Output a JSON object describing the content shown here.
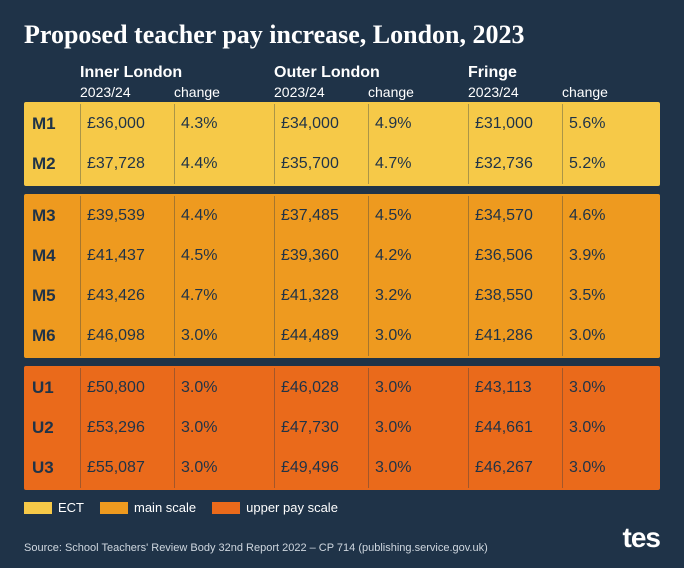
{
  "title": "Proposed teacher pay increase, London, 2023",
  "columns": [
    {
      "region": "Inner London",
      "year": "2023/24",
      "change": "change"
    },
    {
      "region": "Outer London",
      "year": "2023/24",
      "change": "change"
    },
    {
      "region": "Fringe",
      "year": "2023/24",
      "change": "change"
    }
  ],
  "bands": [
    {
      "name": "ect",
      "color": "#f6c948",
      "rows": [
        {
          "label": "M1",
          "cells": [
            "£36,000",
            "4.3%",
            "£34,000",
            "4.9%",
            "£31,000",
            "5.6%"
          ]
        },
        {
          "label": "M2",
          "cells": [
            "£37,728",
            "4.4%",
            "£35,700",
            "4.7%",
            "£32,736",
            "5.2%"
          ]
        }
      ]
    },
    {
      "name": "main-scale",
      "color": "#ee9a1f",
      "rows": [
        {
          "label": "M3",
          "cells": [
            "£39,539",
            "4.4%",
            "£37,485",
            "4.5%",
            "£34,570",
            "4.6%"
          ]
        },
        {
          "label": "M4",
          "cells": [
            "£41,437",
            "4.5%",
            "£39,360",
            "4.2%",
            "£36,506",
            "3.9%"
          ]
        },
        {
          "label": "M5",
          "cells": [
            "£43,426",
            "4.7%",
            "£41,328",
            "3.2%",
            "£38,550",
            "3.5%"
          ]
        },
        {
          "label": "M6",
          "cells": [
            "£46,098",
            "3.0%",
            "£44,489",
            "3.0%",
            "£41,286",
            "3.0%"
          ]
        }
      ]
    },
    {
      "name": "upper-pay-scale",
      "color": "#ea6a1b",
      "rows": [
        {
          "label": "U1",
          "cells": [
            "£50,800",
            "3.0%",
            "£46,028",
            "3.0%",
            "£43,113",
            "3.0%"
          ]
        },
        {
          "label": "U2",
          "cells": [
            "£53,296",
            "3.0%",
            "£47,730",
            "3.0%",
            "£44,661",
            "3.0%"
          ]
        },
        {
          "label": "U3",
          "cells": [
            "£55,087",
            "3.0%",
            "£49,496",
            "3.0%",
            "£46,267",
            "3.0%"
          ]
        }
      ]
    }
  ],
  "legend": [
    {
      "color": "#f6c948",
      "label": "ECT"
    },
    {
      "color": "#ee9a1f",
      "label": "main scale"
    },
    {
      "color": "#ea6a1b",
      "label": "upper pay scale"
    }
  ],
  "source": "Source: School Teachers' Review Body 32nd Report 2022 – CP 714 (publishing.service.gov.uk)",
  "logo": "tes",
  "background_color": "#1f3348",
  "text_color_dark": "#1f3348"
}
